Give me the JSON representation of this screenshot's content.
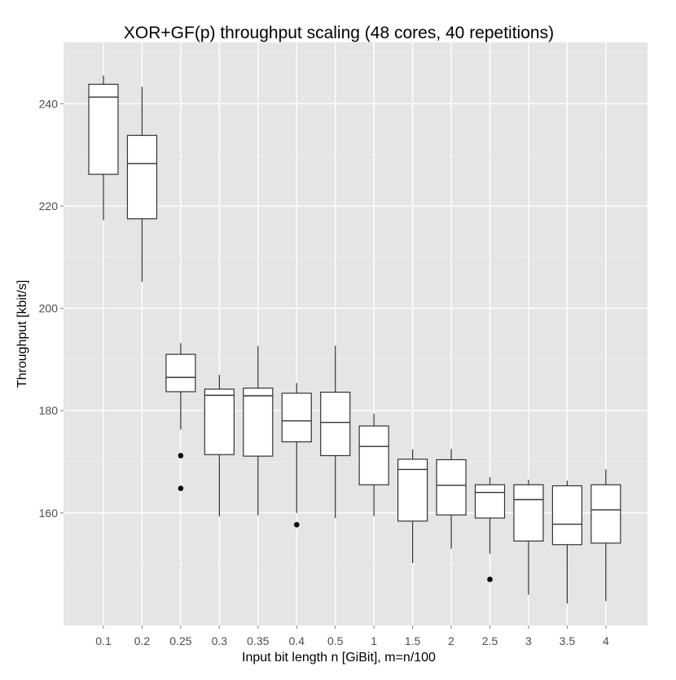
{
  "chart_data": {
    "type": "boxplot",
    "title": "XOR+GF(p) throughput scaling (48 cores, 40 repetitions)",
    "xlabel": "Input bit length n [GiBit], m=n/100",
    "ylabel": "Throughput [kbit/s]",
    "ylim": [
      138,
      252
    ],
    "y_ticks": [
      160,
      180,
      200,
      220,
      240
    ],
    "grid": true,
    "background_color": "#e5e5e5",
    "grid_color": "#ffffff",
    "box_fill": "#ffffff",
    "line_color": "#333333",
    "categories": [
      "0.1",
      "0.2",
      "0.25",
      "0.3",
      "0.35",
      "0.4",
      "0.5",
      "1",
      "1.5",
      "2",
      "2.5",
      "3",
      "3.5",
      "4"
    ],
    "boxes": [
      {
        "x": "0.1",
        "min": 217.2,
        "q1": 226.2,
        "median": 241.3,
        "q3": 243.8,
        "max": 245.5,
        "outliers": []
      },
      {
        "x": "0.2",
        "min": 205.2,
        "q1": 217.5,
        "median": 228.3,
        "q3": 233.8,
        "max": 243.3,
        "outliers": []
      },
      {
        "x": "0.25",
        "min": 176.3,
        "q1": 183.7,
        "median": 186.5,
        "q3": 191.0,
        "max": 193.2,
        "outliers": [
          171.2,
          164.8
        ]
      },
      {
        "x": "0.3",
        "min": 159.3,
        "q1": 171.4,
        "median": 183.0,
        "q3": 184.2,
        "max": 187.0,
        "outliers": []
      },
      {
        "x": "0.35",
        "min": 159.5,
        "q1": 171.1,
        "median": 182.9,
        "q3": 184.4,
        "max": 192.6,
        "outliers": []
      },
      {
        "x": "0.4",
        "min": 160.0,
        "q1": 173.9,
        "median": 178.0,
        "q3": 183.4,
        "max": 185.4,
        "outliers": [
          157.7
        ]
      },
      {
        "x": "0.5",
        "min": 159.0,
        "q1": 171.2,
        "median": 177.7,
        "q3": 183.6,
        "max": 192.7,
        "outliers": []
      },
      {
        "x": "1",
        "min": 159.4,
        "q1": 165.5,
        "median": 173.0,
        "q3": 177.0,
        "max": 179.4,
        "outliers": []
      },
      {
        "x": "1.5",
        "min": 150.2,
        "q1": 158.4,
        "median": 168.5,
        "q3": 170.5,
        "max": 172.4,
        "outliers": []
      },
      {
        "x": "2",
        "min": 153.0,
        "q1": 159.6,
        "median": 165.4,
        "q3": 170.4,
        "max": 172.5,
        "outliers": []
      },
      {
        "x": "2.5",
        "min": 152.0,
        "q1": 159.0,
        "median": 164.0,
        "q3": 165.5,
        "max": 167.0,
        "outliers": [
          147.0
        ]
      },
      {
        "x": "3",
        "min": 144.0,
        "q1": 154.5,
        "median": 162.6,
        "q3": 165.5,
        "max": 166.5,
        "outliers": []
      },
      {
        "x": "3.5",
        "min": 142.3,
        "q1": 153.8,
        "median": 157.8,
        "q3": 165.3,
        "max": 166.3,
        "outliers": []
      },
      {
        "x": "4",
        "min": 142.8,
        "q1": 154.1,
        "median": 160.6,
        "q3": 165.5,
        "max": 168.5,
        "outliers": []
      }
    ]
  }
}
